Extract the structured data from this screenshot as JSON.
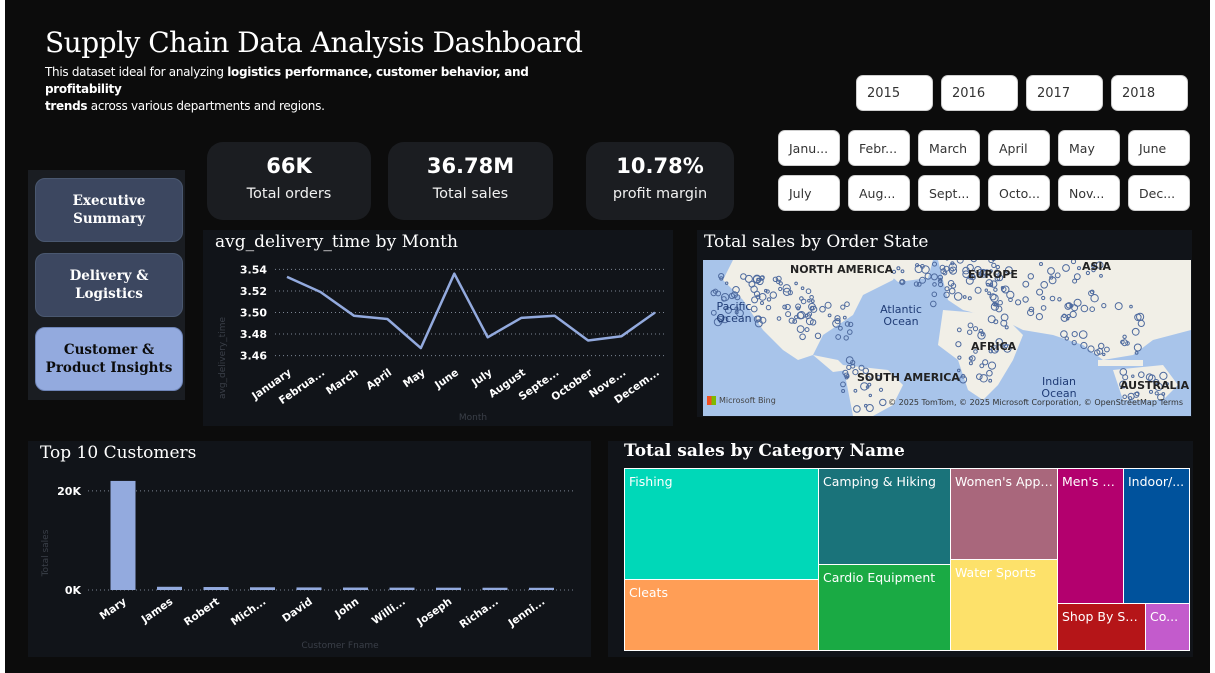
{
  "header": {
    "title": "Supply Chain Data Analysis Dashboard",
    "subtitle_pre": "This dataset ideal for analyzing ",
    "subtitle_bold1": "logistics performance, customer behavior, and profitability",
    "subtitle_bold2": "trends",
    "subtitle_post": " across various departments and regions."
  },
  "years": [
    "2015",
    "2016",
    "2017",
    "2018"
  ],
  "months": [
    "Janu...",
    "Febr...",
    "March",
    "April",
    "May",
    "June",
    "July",
    "Aug...",
    "Sept...",
    "Octo...",
    "Nov...",
    "Dec..."
  ],
  "nav": {
    "executive": "Executive Summary",
    "delivery": "Delivery & Logistics",
    "customer": "Customer & Product Insights"
  },
  "kpis": [
    {
      "value": "66K",
      "label": "Total orders"
    },
    {
      "value": "36.78M",
      "label": "Total sales"
    },
    {
      "value": "10.78%",
      "label": "profit margin"
    }
  ],
  "colors": {
    "line": "#93aade",
    "bar": "#93aade",
    "nav_active": "#93aade",
    "nav_inactive": "#3c4760"
  },
  "map": {
    "title": "Total sales by Order State",
    "continents": [
      "NORTH AMERICA",
      "EUROPE",
      "ASIA",
      "AFRICA",
      "SOUTH AMERICA",
      "AUSTRALIA"
    ],
    "oceans": [
      "Pacific Ocean",
      "Atlantic Ocean",
      "Indian Ocean"
    ],
    "attribution": "© 2025 TomTom, © 2025 Microsoft Corporation, © OpenStreetMap Terms",
    "logo": "Microsoft Bing"
  },
  "chart_data": [
    {
      "type": "line",
      "title": "avg_delivery_time by Month",
      "xlabel": "Month",
      "ylabel": "avg_delivery_time",
      "categories": [
        "January",
        "Februa...",
        "March",
        "April",
        "May",
        "June",
        "July",
        "August",
        "Septe...",
        "October",
        "Nove...",
        "Decem..."
      ],
      "values": [
        3.533,
        3.519,
        3.497,
        3.494,
        3.467,
        3.536,
        3.477,
        3.495,
        3.497,
        3.474,
        3.478,
        3.5
      ],
      "ylim": [
        3.455,
        3.545
      ],
      "yticks": [
        "3.46",
        "3.48",
        "3.50",
        "3.52",
        "3.54"
      ],
      "ytick_values": [
        3.46,
        3.48,
        3.5,
        3.52,
        3.54
      ],
      "grid": true
    },
    {
      "type": "bar",
      "title": "Top 10 Customers",
      "xlabel": "Customer Fname",
      "ylabel": "Total sales",
      "categories": [
        "Mary",
        "James",
        "Robert",
        "Mich...",
        "David",
        "John",
        "Willi...",
        "Joseph",
        "Richa...",
        "Jenni..."
      ],
      "values": [
        22000,
        650,
        600,
        550,
        520,
        500,
        480,
        470,
        460,
        450
      ],
      "ylim": [
        0,
        24000
      ],
      "yticks": [
        "0K",
        "20K"
      ],
      "ytick_values": [
        0,
        20000
      ],
      "grid": true
    },
    {
      "type": "treemap",
      "title": "Total sales by Category Name",
      "categories": [
        "Fishing",
        "Cleats",
        "Camping & Hiking",
        "Cardio Equipment",
        "Women's Appa...",
        "Water Sports",
        "Men's F...",
        "Indoor/...",
        "Shop By Sp...",
        "Co..."
      ],
      "colors": [
        "#00d8b8",
        "#ff9e56",
        "#1a737a",
        "#1aaa44",
        "#a9677c",
        "#fde16a",
        "#b3006e",
        "#00529c",
        "#b51518",
        "#c35bcc"
      ]
    }
  ]
}
